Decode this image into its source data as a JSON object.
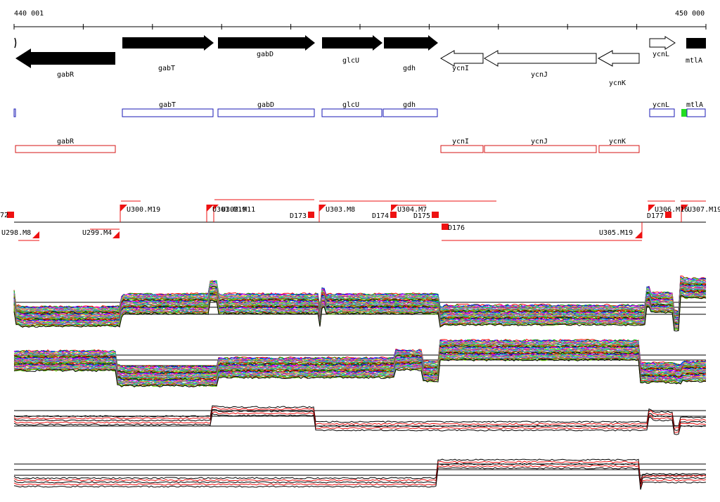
{
  "ruler": {
    "start_label": "440 001",
    "end_label": "450 000"
  },
  "colors": {
    "gene_fill": "#000000",
    "annotation_blue": "#1a1ab4",
    "annotation_red": "#d41414",
    "annotation_green": "#22dd22",
    "segment_red": "#ee1111"
  },
  "genes_top": [
    {
      "label": "gabR",
      "filled": true
    },
    {
      "label": "gabT",
      "filled": true
    },
    {
      "label": "gabD",
      "filled": true
    },
    {
      "label": "glcU",
      "filled": true
    },
    {
      "label": "gdh",
      "filled": true
    },
    {
      "label": "ycnI",
      "filled": false
    },
    {
      "label": "ycnJ",
      "filled": false
    },
    {
      "label": "ycnK",
      "filled": false
    },
    {
      "label": "ycnL",
      "filled": false
    },
    {
      "label": "mtlA",
      "filled": true
    }
  ],
  "annotations_blue": [
    {
      "label": "gabT"
    },
    {
      "label": "gabD"
    },
    {
      "label": "glcU"
    },
    {
      "label": "gdh"
    },
    {
      "label": "ycnL"
    },
    {
      "label": "mtlA"
    }
  ],
  "annotations_red": [
    {
      "label": "gabR"
    },
    {
      "label": "ycnI"
    },
    {
      "label": "ycnJ"
    },
    {
      "label": "ycnK"
    }
  ],
  "segments_upper": [
    {
      "label": "72"
    },
    {
      "label": "U300.M19"
    },
    {
      "label": "U301.M19"
    },
    {
      "label": "U302.M11"
    },
    {
      "label": "D173"
    },
    {
      "label": "U303.M8"
    },
    {
      "label": "D174"
    },
    {
      "label": "U304.M7"
    },
    {
      "label": "D175"
    },
    {
      "label": "U306.M16"
    },
    {
      "label": "D177"
    },
    {
      "label": "U307.M19"
    }
  ],
  "segments_lower": [
    {
      "label": "U298.M8"
    },
    {
      "label": "U299.M4"
    },
    {
      "label": "D176"
    },
    {
      "label": "U305.M19"
    }
  ],
  "panels": [
    {
      "name": "panel-1-multi"
    },
    {
      "name": "panel-2-multi"
    },
    {
      "name": "panel-3-pair"
    },
    {
      "name": "panel-4-pair"
    }
  ],
  "line_palette": [
    "#ff0000",
    "#00aa00",
    "#0000ff",
    "#ff00ff",
    "#00cccc",
    "#ffaa00",
    "#888888",
    "#aa00aa",
    "#00ff66",
    "#ff6699",
    "#6666ff",
    "#999900",
    "#009999",
    "#cc3300",
    "#66cc00",
    "#000000"
  ]
}
